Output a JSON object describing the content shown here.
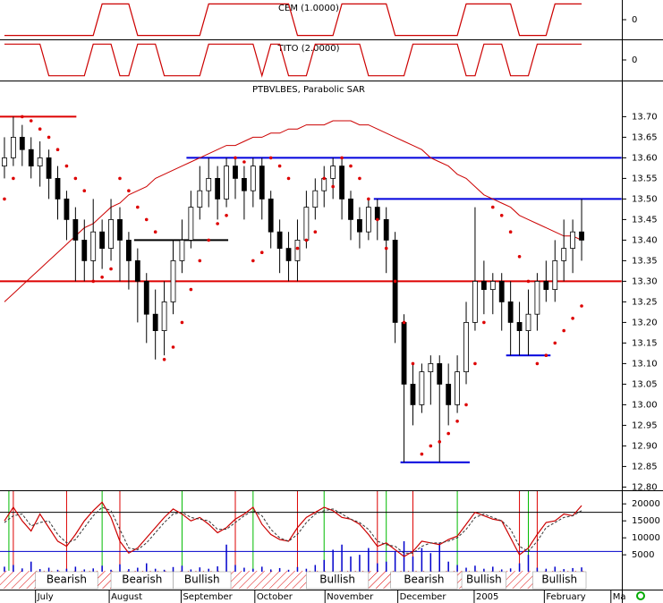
{
  "chart_data": [
    {
      "type": "step-line",
      "title": "CEM (1.0000)",
      "color": "#cc0000",
      "ylim": [
        -1.25,
        1.25
      ],
      "yticks": [
        0
      ],
      "values": [
        -1,
        -1,
        -1,
        -1,
        -1,
        -1,
        -1,
        -1,
        -1,
        -1,
        -1,
        1,
        1,
        1,
        1,
        -1,
        -1,
        -1,
        -1,
        -1,
        -1,
        -1,
        -1,
        1,
        1,
        1,
        1,
        1,
        1,
        1,
        1,
        1,
        1,
        -1,
        -1,
        -1,
        -1,
        -1,
        1,
        1,
        1,
        1,
        1,
        1,
        -1,
        -1,
        -1,
        -1,
        -1,
        -1,
        -1,
        -1,
        1,
        1,
        1,
        1,
        1,
        1,
        -1,
        -1,
        -1,
        -1,
        1,
        1,
        1,
        1
      ]
    },
    {
      "type": "step-line",
      "title": "TITO (2.0000)",
      "color": "#cc0000",
      "ylim": [
        -1.3,
        1.3
      ],
      "yticks": [
        0
      ],
      "values": [
        1,
        1,
        1,
        1,
        1,
        -1,
        -1,
        -1,
        -1,
        -1,
        1,
        1,
        1,
        -1,
        -1,
        1,
        1,
        1,
        -1,
        -1,
        -1,
        -1,
        -1,
        1,
        1,
        1,
        1,
        1,
        1,
        -1,
        1,
        1,
        -1,
        -1,
        -1,
        1,
        1,
        1,
        1,
        1,
        1,
        -1,
        -1,
        -1,
        -1,
        -1,
        1,
        1,
        1,
        1,
        1,
        1,
        -1,
        -1,
        1,
        1,
        1,
        -1,
        -1,
        -1,
        1,
        1,
        1,
        1,
        1,
        1
      ]
    },
    {
      "type": "candlestick",
      "title": "PTBVLBES, Parabolic SAR",
      "x": [
        1,
        2,
        3,
        4,
        5,
        6,
        7,
        8,
        9,
        10,
        11,
        12,
        13,
        14,
        15,
        16,
        17,
        18,
        19,
        20,
        21,
        22,
        23,
        24,
        25,
        26,
        27,
        28,
        29,
        30,
        31,
        32,
        33,
        34,
        35,
        36,
        37,
        38,
        39,
        40,
        41,
        42,
        43,
        44,
        45,
        46,
        47,
        48,
        49,
        50,
        51,
        52,
        53,
        54,
        55,
        56,
        57,
        58,
        59,
        60,
        61,
        62,
        63,
        64,
        65,
        66
      ],
      "xlim": [
        0.5,
        66.5
      ],
      "open": [
        13.58,
        13.6,
        13.65,
        13.62,
        13.58,
        13.6,
        13.55,
        13.5,
        13.45,
        13.4,
        13.35,
        13.42,
        13.38,
        13.45,
        13.4,
        13.35,
        13.3,
        13.22,
        13.18,
        13.25,
        13.35,
        13.4,
        13.48,
        13.52,
        13.55,
        13.5,
        13.58,
        13.55,
        13.52,
        13.58,
        13.5,
        13.42,
        13.38,
        13.35,
        13.4,
        13.48,
        13.52,
        13.55,
        13.58,
        13.5,
        13.45,
        13.42,
        13.48,
        13.45,
        13.4,
        13.2,
        13.05,
        13.0,
        13.08,
        13.1,
        13.05,
        13.0,
        13.08,
        13.2,
        13.3,
        13.28,
        13.3,
        13.25,
        13.2,
        13.18,
        13.22,
        13.3,
        13.28,
        13.35,
        13.38,
        13.42
      ],
      "high": [
        13.65,
        13.7,
        13.68,
        13.65,
        13.64,
        13.62,
        13.58,
        13.52,
        13.48,
        13.45,
        13.5,
        13.45,
        13.5,
        13.48,
        13.42,
        13.38,
        13.32,
        13.28,
        13.3,
        13.4,
        13.45,
        13.52,
        13.58,
        13.6,
        13.58,
        13.6,
        13.6,
        13.58,
        13.6,
        13.6,
        13.52,
        13.45,
        13.42,
        13.45,
        13.52,
        13.55,
        13.58,
        13.6,
        13.6,
        13.52,
        13.48,
        13.5,
        13.5,
        13.48,
        13.42,
        13.22,
        13.1,
        13.1,
        13.12,
        13.12,
        13.1,
        13.12,
        13.25,
        13.48,
        13.35,
        13.32,
        13.32,
        13.3,
        13.25,
        13.28,
        13.32,
        13.35,
        13.4,
        13.45,
        13.45,
        13.5
      ],
      "low": [
        13.55,
        13.58,
        13.58,
        13.55,
        13.53,
        13.5,
        13.45,
        13.4,
        13.3,
        13.3,
        13.3,
        13.33,
        13.35,
        13.3,
        13.28,
        13.2,
        13.15,
        13.11,
        13.12,
        13.22,
        13.32,
        13.38,
        13.45,
        13.48,
        13.45,
        13.48,
        13.5,
        13.45,
        13.48,
        13.45,
        13.38,
        13.32,
        13.3,
        13.3,
        13.38,
        13.45,
        13.48,
        13.5,
        13.45,
        13.4,
        13.38,
        13.4,
        13.4,
        13.32,
        13.15,
        12.86,
        12.95,
        12.98,
        13.0,
        12.86,
        12.95,
        12.98,
        13.05,
        13.18,
        13.22,
        13.22,
        13.18,
        13.12,
        13.12,
        13.12,
        13.18,
        13.25,
        13.25,
        13.3,
        13.32,
        13.35
      ],
      "close": [
        13.6,
        13.65,
        13.62,
        13.58,
        13.6,
        13.55,
        13.5,
        13.45,
        13.4,
        13.35,
        13.42,
        13.38,
        13.45,
        13.4,
        13.35,
        13.3,
        13.22,
        13.18,
        13.25,
        13.35,
        13.4,
        13.48,
        13.52,
        13.55,
        13.5,
        13.58,
        13.55,
        13.52,
        13.58,
        13.5,
        13.42,
        13.38,
        13.35,
        13.4,
        13.48,
        13.52,
        13.55,
        13.58,
        13.5,
        13.45,
        13.42,
        13.48,
        13.45,
        13.4,
        13.2,
        13.05,
        13.0,
        13.08,
        13.1,
        13.05,
        13.0,
        13.08,
        13.2,
        13.3,
        13.28,
        13.3,
        13.25,
        13.2,
        13.18,
        13.22,
        13.3,
        13.28,
        13.35,
        13.38,
        13.42,
        13.4
      ],
      "sar": [
        13.5,
        13.55,
        13.7,
        13.69,
        13.67,
        13.65,
        13.62,
        13.58,
        13.55,
        13.52,
        13.3,
        13.31,
        13.33,
        13.55,
        13.52,
        13.48,
        13.45,
        13.42,
        13.11,
        13.14,
        13.2,
        13.28,
        13.35,
        13.4,
        13.44,
        13.46,
        13.6,
        13.59,
        13.35,
        13.37,
        13.6,
        13.58,
        13.55,
        13.38,
        13.4,
        13.42,
        13.55,
        13.53,
        13.6,
        13.58,
        13.55,
        13.5,
        13.45,
        13.38,
        13.3,
        13.2,
        13.1,
        12.88,
        12.9,
        12.91,
        12.93,
        12.96,
        13.0,
        13.1,
        13.2,
        13.48,
        13.46,
        13.42,
        13.36,
        13.3,
        13.1,
        13.12,
        13.15,
        13.18,
        13.21,
        13.24
      ],
      "ma": [
        13.25,
        13.27,
        13.29,
        13.31,
        13.33,
        13.35,
        13.37,
        13.39,
        13.41,
        13.43,
        13.44,
        13.46,
        13.48,
        13.49,
        13.51,
        13.52,
        13.53,
        13.55,
        13.56,
        13.57,
        13.58,
        13.59,
        13.6,
        13.61,
        13.62,
        13.63,
        13.63,
        13.64,
        13.65,
        13.65,
        13.66,
        13.66,
        13.67,
        13.67,
        13.68,
        13.68,
        13.68,
        13.69,
        13.69,
        13.69,
        13.68,
        13.68,
        13.67,
        13.66,
        13.65,
        13.64,
        13.63,
        13.62,
        13.6,
        13.59,
        13.58,
        13.56,
        13.55,
        13.53,
        13.51,
        13.5,
        13.49,
        13.48,
        13.46,
        13.45,
        13.44,
        13.43,
        13.42,
        13.41,
        13.41,
        13.4
      ],
      "sar_color": "#dd0000",
      "ma_color": "#cc0000",
      "levels": [
        {
          "value": 13.7,
          "color": "#dd0000",
          "start": 0.5,
          "end": 9.1
        },
        {
          "value": 13.6,
          "color": "#0000dd",
          "start": 21.5,
          "end": 70.5
        },
        {
          "value": 13.5,
          "color": "#0000dd",
          "start": 42.6,
          "end": 70.5
        },
        {
          "value": 13.3,
          "color": "#dd0000",
          "start": 0.5,
          "end": 70.5
        },
        {
          "value": 13.4,
          "color": "#000000",
          "start": 15.6,
          "end": 26.2
        },
        {
          "value": 13.12,
          "color": "#0000dd",
          "start": 57.5,
          "end": 62.5
        },
        {
          "value": 12.86,
          "color": "#0000dd",
          "start": 45.6,
          "end": 53.4
        }
      ],
      "ylim": [
        12.79,
        13.79
      ],
      "yticks": [
        {
          "value": 12.8,
          "label": "12.80"
        },
        {
          "value": 12.85,
          "label": "12.85"
        },
        {
          "value": 12.9,
          "label": "12.90"
        },
        {
          "value": 12.95,
          "label": "12.95"
        },
        {
          "value": 13.0,
          "label": "13.00"
        },
        {
          "value": 13.05,
          "label": "13.05"
        },
        {
          "value": 13.1,
          "label": "13.10"
        },
        {
          "value": 13.15,
          "label": "13.15"
        },
        {
          "value": 13.2,
          "label": "13.20"
        },
        {
          "value": 13.25,
          "label": "13.25"
        },
        {
          "value": 13.3,
          "label": "13.30"
        },
        {
          "value": 13.35,
          "label": "13.35"
        },
        {
          "value": 13.4,
          "label": "13.40"
        },
        {
          "value": 13.45,
          "label": "13.45"
        },
        {
          "value": 13.5,
          "label": "13.50"
        },
        {
          "value": 13.55,
          "label": "13.55"
        },
        {
          "value": 13.6,
          "label": "13.60"
        },
        {
          "value": 13.65,
          "label": "13.65"
        },
        {
          "value": 13.7,
          "label": "13.70"
        }
      ]
    },
    {
      "type": "oscillator",
      "series": [
        {
          "name": "oscillator",
          "color": "#cc0000",
          "values": [
            15000,
            19000,
            15000,
            12000,
            17000,
            13000,
            9000,
            7500,
            11000,
            15000,
            18000,
            20500,
            16000,
            9000,
            5500,
            7000,
            10000,
            13000,
            16000,
            18500,
            17000,
            15000,
            16000,
            14000,
            11500,
            13000,
            15500,
            17000,
            19000,
            14000,
            11000,
            9500,
            9000,
            13000,
            16000,
            17500,
            19000,
            18000,
            16000,
            15500,
            14000,
            11000,
            7500,
            8500,
            6500,
            4500,
            6000,
            9000,
            8500,
            8000,
            9500,
            10500,
            14000,
            17500,
            16500,
            15500,
            15000,
            10000,
            5000,
            7000,
            11000,
            14500,
            15000,
            17000,
            16500,
            19500
          ]
        },
        {
          "name": "signal",
          "color": "#333333",
          "values": [
            14500,
            16500,
            17000,
            13500,
            14500,
            15000,
            11000,
            8500,
            9500,
            13000,
            16500,
            19000,
            18000,
            12500,
            7000,
            6500,
            8500,
            11500,
            14500,
            17000,
            17500,
            16000,
            15500,
            15000,
            12500,
            12500,
            14500,
            16500,
            18000,
            16500,
            12500,
            10000,
            9000,
            11000,
            14500,
            17000,
            18000,
            18500,
            17000,
            15500,
            14500,
            12500,
            9000,
            8000,
            7500,
            5500,
            5500,
            7500,
            8500,
            8500,
            9000,
            10000,
            12500,
            16000,
            17000,
            16000,
            15000,
            12500,
            7500,
            6000,
            9000,
            13000,
            14500,
            16000,
            16500,
            18000
          ]
        }
      ],
      "volume": [
        1500,
        2000,
        1000,
        3000,
        800,
        1200,
        600,
        900,
        1500,
        700,
        1000,
        1800,
        600,
        2200,
        800,
        1200,
        2500,
        900,
        600,
        1400,
        1800,
        700,
        1300,
        900,
        1600,
        8000,
        2000,
        1200,
        900,
        1500,
        700,
        1100,
        600,
        1400,
        900,
        2000,
        3500,
        6500,
        8000,
        4500,
        5000,
        7000,
        2500,
        3000,
        6000,
        9000,
        4500,
        7000,
        5500,
        8500,
        3000,
        2000,
        1200,
        1800,
        900,
        1500,
        700,
        1000,
        2500,
        5000,
        1200,
        900,
        1500,
        800,
        1100,
        1300
      ],
      "volume_color": "#0000cc",
      "hlines": [
        {
          "value": 17500,
          "color": "#000000"
        },
        {
          "value": 6000,
          "color": "#0000cc"
        }
      ],
      "buy_signals": [
        1.5,
        12,
        21,
        29,
        37,
        44,
        52,
        60
      ],
      "sell_signals": [
        2,
        8,
        14,
        27,
        34,
        43,
        47,
        59,
        61
      ],
      "buy_color": "#00bb00",
      "sell_color": "#dd0000",
      "regimes": [
        {
          "label": "Bearish",
          "start": 4.5,
          "end": 11.5
        },
        {
          "label": "Bearish",
          "start": 13,
          "end": 20
        },
        {
          "label": "Bullish",
          "start": 20,
          "end": 26.5
        },
        {
          "label": "Bullish",
          "start": 35,
          "end": 42
        },
        {
          "label": "Bearish",
          "start": 44.5,
          "end": 52
        },
        {
          "label": "Bullish",
          "start": 52.5,
          "end": 57.5
        },
        {
          "label": "Bullish",
          "start": 60.5,
          "end": 66.5
        }
      ],
      "xlim": [
        0.5,
        66.5
      ],
      "ylim": [
        -5500,
        24000
      ],
      "yticks": [
        5000,
        10000,
        15000,
        20000
      ],
      "xticks": [
        {
          "value": 4.5,
          "label": "July"
        },
        {
          "value": 12.8,
          "label": "August"
        },
        {
          "value": 20.9,
          "label": "September"
        },
        {
          "value": 29.2,
          "label": "October"
        },
        {
          "value": 37.1,
          "label": "November"
        },
        {
          "value": 45.3,
          "label": "December"
        },
        {
          "value": 53.9,
          "label": "2005"
        },
        {
          "value": 61.8,
          "label": "February"
        },
        {
          "value": 69.3,
          "label": "Ma"
        }
      ]
    }
  ]
}
